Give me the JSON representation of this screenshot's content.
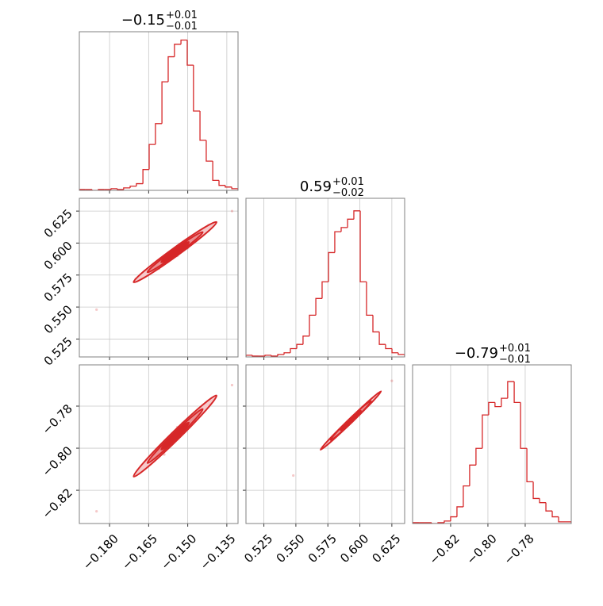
{
  "chart_data": [
    {
      "type": "histogram",
      "title": "−0.15",
      "title_upper": "+0.01",
      "title_lower": "−0.01",
      "color": "#d62728",
      "bins": [
        -0.1916,
        -0.1892,
        -0.1867,
        -0.1843,
        -0.1819,
        -0.1794,
        -0.177,
        -0.1746,
        -0.1721,
        -0.1697,
        -0.1672,
        -0.1648,
        -0.1624,
        -0.1599,
        -0.1575,
        -0.1551,
        -0.1526,
        -0.1502,
        -0.1478,
        -0.1453,
        -0.1429,
        -0.1404,
        -0.138,
        -0.1356,
        -0.1331,
        -0.1307
      ],
      "values": [
        1,
        1,
        0,
        1,
        1,
        2,
        1,
        3,
        5,
        8,
        25,
        55,
        80,
        130,
        160,
        175,
        180,
        150,
        95,
        60,
        35,
        12,
        6,
        4,
        2
      ],
      "xlim": [
        -0.1916,
        -0.1307
      ],
      "ylim": [
        0,
        190
      ],
      "xticks": [
        -0.18,
        -0.165,
        -0.15,
        -0.135
      ],
      "grid": true
    },
    {
      "type": "scatter",
      "color": "#d62728",
      "x": [
        -0.17,
        -0.166,
        -0.163,
        -0.161,
        -0.159,
        -0.158,
        -0.157,
        -0.156,
        -0.155,
        -0.154,
        -0.153,
        -0.152,
        -0.151,
        -0.15,
        -0.149,
        -0.148,
        -0.146,
        -0.144,
        -0.142,
        -0.185,
        -0.133
      ],
      "values": [
        0.572,
        0.578,
        0.584,
        0.58,
        0.59,
        0.586,
        0.592,
        0.588,
        0.596,
        0.59,
        0.598,
        0.594,
        0.6,
        0.596,
        0.604,
        0.6,
        0.606,
        0.61,
        0.614,
        0.548,
        0.625
      ],
      "xlim": [
        -0.1916,
        -0.1307
      ],
      "ylim": [
        0.511,
        0.635
      ],
      "xticks": [
        -0.18,
        -0.165,
        -0.15,
        -0.135
      ],
      "yticks": [
        {
          "value": 0.525,
          "label": "0.525"
        },
        {
          "value": 0.55,
          "label": "0.550"
        },
        {
          "value": 0.575,
          "label": "0.575"
        },
        {
          "value": 0.6,
          "label": "0.600"
        },
        {
          "value": 0.625,
          "label": "0.625"
        }
      ],
      "grid": true
    },
    {
      "type": "histogram",
      "title": "0.59",
      "title_upper": "+0.01",
      "title_lower": "−0.02",
      "color": "#d62728",
      "bins": [
        0.511,
        0.516,
        0.5209,
        0.5259,
        0.5308,
        0.5358,
        0.5408,
        0.5457,
        0.5507,
        0.5556,
        0.5606,
        0.5656,
        0.5705,
        0.5755,
        0.5804,
        0.5854,
        0.5904,
        0.5953,
        0.6003,
        0.6052,
        0.6102,
        0.6152,
        0.6201,
        0.6251,
        0.63,
        0.635
      ],
      "values": [
        2,
        1,
        1,
        2,
        1,
        3,
        5,
        10,
        15,
        25,
        50,
        70,
        90,
        125,
        150,
        155,
        165,
        175,
        90,
        50,
        30,
        15,
        10,
        5,
        3
      ],
      "xlim": [
        0.511,
        0.635
      ],
      "ylim": [
        0,
        190
      ],
      "xticks": [
        0.525,
        0.55,
        0.575,
        0.6,
        0.625
      ],
      "grid": true
    },
    {
      "type": "scatter",
      "color": "#d62728",
      "x": [
        -0.17,
        -0.166,
        -0.163,
        -0.161,
        -0.159,
        -0.158,
        -0.157,
        -0.156,
        -0.155,
        -0.154,
        -0.153,
        -0.152,
        -0.151,
        -0.15,
        -0.149,
        -0.148,
        -0.146,
        -0.144,
        -0.142,
        -0.185,
        -0.133
      ],
      "values": [
        -0.813,
        -0.808,
        -0.805,
        -0.8,
        -0.803,
        -0.797,
        -0.799,
        -0.793,
        -0.796,
        -0.79,
        -0.794,
        -0.788,
        -0.791,
        -0.786,
        -0.789,
        -0.784,
        -0.784,
        -0.781,
        -0.778,
        -0.83,
        -0.77
      ],
      "xlim": [
        -0.1916,
        -0.1307
      ],
      "ylim": [
        -0.8358,
        -0.7604
      ],
      "xticks": [
        {
          "value": -0.18,
          "label": "−0.180"
        },
        {
          "value": -0.165,
          "label": "−0.165"
        },
        {
          "value": -0.15,
          "label": "−0.150"
        },
        {
          "value": -0.135,
          "label": "−0.135"
        }
      ],
      "yticks": [
        {
          "value": -0.78,
          "label": "−0.78"
        },
        {
          "value": -0.8,
          "label": "−0.80"
        },
        {
          "value": -0.82,
          "label": "−0.82"
        }
      ],
      "grid": true
    },
    {
      "type": "scatter",
      "color": "#d62728",
      "x": [
        0.572,
        0.578,
        0.584,
        0.58,
        0.59,
        0.586,
        0.592,
        0.588,
        0.596,
        0.59,
        0.598,
        0.594,
        0.6,
        0.596,
        0.604,
        0.6,
        0.606,
        0.61,
        0.614,
        0.548,
        0.625
      ],
      "values": [
        -0.799,
        -0.796,
        -0.792,
        -0.794,
        -0.789,
        -0.791,
        -0.787,
        -0.79,
        -0.785,
        -0.789,
        -0.784,
        -0.786,
        -0.783,
        -0.785,
        -0.78,
        -0.783,
        -0.779,
        -0.777,
        -0.774,
        -0.813,
        -0.768
      ],
      "xlim": [
        0.511,
        0.635
      ],
      "ylim": [
        -0.8358,
        -0.7604
      ],
      "xticks": [
        {
          "value": 0.525,
          "label": "0.525"
        },
        {
          "value": 0.55,
          "label": "0.550"
        },
        {
          "value": 0.575,
          "label": "0.575"
        },
        {
          "value": 0.6,
          "label": "0.600"
        },
        {
          "value": 0.625,
          "label": "0.625"
        }
      ],
      "yticks": [
        -0.78,
        -0.8,
        -0.82
      ],
      "grid": true
    },
    {
      "type": "histogram",
      "title": "−0.79",
      "title_upper": "+0.01",
      "title_lower": "−0.01",
      "color": "#d62728",
      "bins": [
        -0.8404,
        -0.837,
        -0.8336,
        -0.8302,
        -0.8268,
        -0.8234,
        -0.82,
        -0.8166,
        -0.8132,
        -0.8098,
        -0.8064,
        -0.803,
        -0.7996,
        -0.7962,
        -0.7928,
        -0.7894,
        -0.7859,
        -0.7825,
        -0.7791,
        -0.7757,
        -0.7723,
        -0.7689,
        -0.7655,
        -0.7621,
        -0.7587,
        -0.7553
      ],
      "values": [
        1,
        1,
        1,
        0,
        1,
        3,
        8,
        20,
        45,
        70,
        90,
        130,
        145,
        140,
        150,
        170,
        145,
        90,
        50,
        30,
        25,
        15,
        8,
        2,
        2
      ],
      "xlim": [
        -0.8404,
        -0.7553
      ],
      "ylim": [
        0,
        190
      ],
      "xticks": [
        {
          "value": -0.82,
          "label": "−0.82"
        },
        {
          "value": -0.8,
          "label": "−0.80"
        },
        {
          "value": -0.78,
          "label": "−0.78"
        }
      ],
      "grid": true
    }
  ]
}
